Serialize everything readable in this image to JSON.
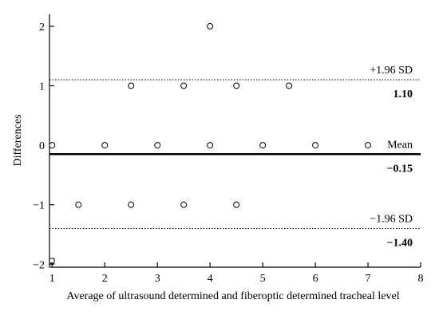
{
  "chart_data": {
    "type": "scatter",
    "title": "",
    "xlabel": "Average of ultrasound determined and fiberoptic determined tracheal level",
    "ylabel": "Differences",
    "xlim": [
      0.95,
      8
    ],
    "ylim": [
      -2.05,
      2.2
    ],
    "x_ticks": [
      1,
      2,
      3,
      4,
      5,
      6,
      7,
      8
    ],
    "y_ticks": [
      2,
      1,
      0,
      -1,
      -2
    ],
    "x_tick_labels": [
      "1",
      "2",
      "3",
      "4",
      "5",
      "6",
      "7",
      "8"
    ],
    "y_tick_labels": [
      "2",
      "1",
      "0",
      "−1",
      "−2"
    ],
    "points": [
      {
        "x": 4,
        "y": 2
      },
      {
        "x": 2.5,
        "y": 1
      },
      {
        "x": 3.5,
        "y": 1
      },
      {
        "x": 4.5,
        "y": 1
      },
      {
        "x": 5.5,
        "y": 1
      },
      {
        "x": 1,
        "y": 0
      },
      {
        "x": 2,
        "y": 0
      },
      {
        "x": 3,
        "y": 0
      },
      {
        "x": 4,
        "y": 0
      },
      {
        "x": 5,
        "y": 0
      },
      {
        "x": 6,
        "y": 0
      },
      {
        "x": 7,
        "y": 0
      },
      {
        "x": 1.5,
        "y": -1
      },
      {
        "x": 2.5,
        "y": -1
      },
      {
        "x": 3.5,
        "y": -1
      },
      {
        "x": 4.5,
        "y": -1
      }
    ],
    "reference_lines": [
      {
        "key": "upper",
        "label": "+1.96 SD",
        "value_text": "1.10",
        "y": 1.1,
        "style": "dotted"
      },
      {
        "key": "mean",
        "label": "Mean",
        "value_text": "−0.15",
        "y": -0.15,
        "style": "solid"
      },
      {
        "key": "lower",
        "label": "−1.96 SD",
        "value_text": "−1.40",
        "y": -1.4,
        "style": "dotted"
      }
    ],
    "grid": false
  }
}
